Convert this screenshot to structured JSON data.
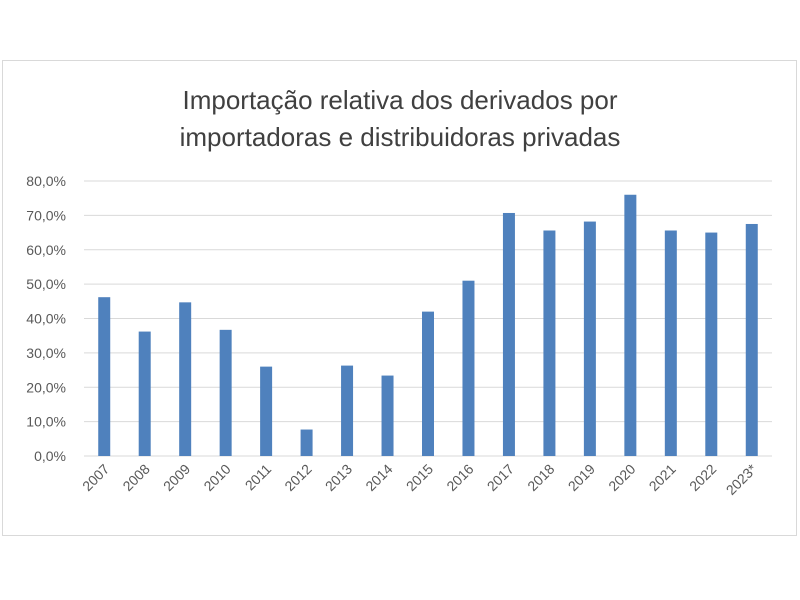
{
  "chart_data": {
    "type": "bar",
    "title_lines": [
      "Importação relativa dos derivados por",
      "importadoras e distribuidoras privadas"
    ],
    "categories": [
      "2007",
      "2008",
      "2009",
      "2010",
      "2011",
      "2012",
      "2013",
      "2014",
      "2015",
      "2016",
      "2017",
      "2018",
      "2019",
      "2020",
      "2021",
      "2022",
      "2023*"
    ],
    "values": [
      46.2,
      36.2,
      44.7,
      36.7,
      26.0,
      7.7,
      26.3,
      23.4,
      42.0,
      51.0,
      70.7,
      65.6,
      68.2,
      76.0,
      65.6,
      65.0,
      67.5
    ],
    "y_ticks": [
      "0,0%",
      "10,0%",
      "20,0%",
      "30,0%",
      "40,0%",
      "50,0%",
      "60,0%",
      "70,0%",
      "80,0%"
    ],
    "ylim": [
      0,
      80
    ],
    "y_unit": "%",
    "grid": "horizontal",
    "bar_color": "#4f81bd",
    "grid_color": "#d9d9d9",
    "legend": "none"
  }
}
